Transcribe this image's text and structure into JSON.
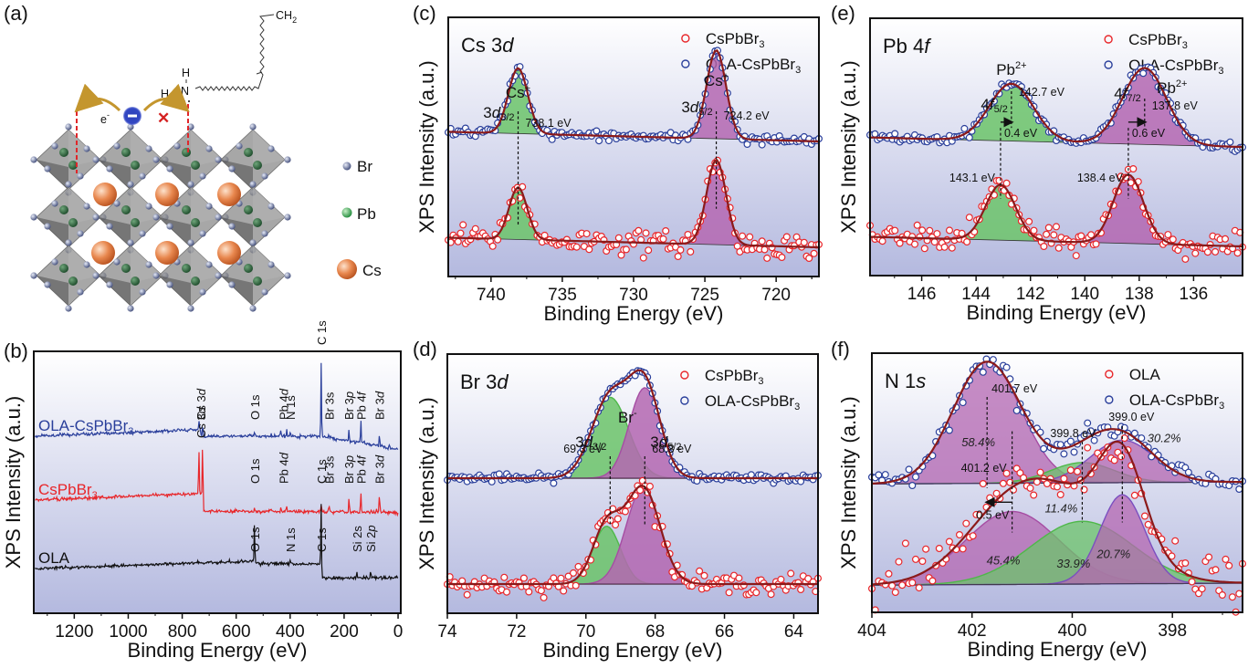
{
  "figure": {
    "panels": [
      "(a)",
      "(b)",
      "(c)",
      "(d)",
      "(e)",
      "(f)"
    ]
  },
  "structure": {
    "panel_label": "(a)",
    "legend": [
      {
        "label": "Br",
        "color": "#6e7aa3"
      },
      {
        "label": "Pb",
        "color": "#2fa84f"
      },
      {
        "label": "Cs",
        "color": "#d9682a"
      }
    ],
    "molecule": {
      "chain_end": "CH",
      "chain_end_sub": "2",
      "amine_h_top": "H",
      "amine_h_left": "H",
      "amine_n": "N"
    },
    "electron_label": "e",
    "electron_sup": "-",
    "blocked_mark": "✕"
  },
  "colors": {
    "CsPbBr3": "#e8262a",
    "OLA-CsPbBr3": "#2a3f9b",
    "OLA": "#111111",
    "fit": "#8b1a1a",
    "green_fill": "#6cc46a",
    "purple_fill": "#b467b1",
    "violet_line": "#7b4fbf",
    "bg_top": "#ffffff",
    "bg_bottom": "#b4b9df"
  },
  "chart_data": [
    {
      "id": "b",
      "panel_label": "(b)",
      "type": "line",
      "title": "",
      "xlabel": "Binding Energy (eV)",
      "ylabel": "XPS Intensity (a.u.)",
      "xlim": [
        1350,
        -10
      ],
      "xticks": [
        1200,
        1000,
        800,
        600,
        400,
        200,
        0
      ],
      "xtick_labels": [
        "1200",
        "1000",
        "800",
        "600",
        "400",
        "200",
        "0"
      ],
      "series": [
        {
          "name": "OLA-CsPbBr3",
          "label": "OLA-CsPbBr",
          "label_sub": "3",
          "color_key": "OLA-CsPbBr3",
          "peaks": [
            {
              "label": "Cs 3d",
              "x": [
                738,
                724
              ]
            },
            {
              "label": "O 1s",
              "x": [
                532
              ]
            },
            {
              "label": "Pb 4d",
              "x": [
                435,
                413
              ]
            },
            {
              "label": "N 1s",
              "x": [
                400
              ]
            },
            {
              "label": "C 1s",
              "x": [
                285
              ]
            },
            {
              "label": "Br 3s",
              "x": [
                256
              ]
            },
            {
              "label": "Br 3p",
              "x": [
                182
              ]
            },
            {
              "label": "Pb 4f",
              "x": [
                138
              ]
            },
            {
              "label": "Br 3d",
              "x": [
                69
              ]
            }
          ]
        },
        {
          "name": "CsPbBr3",
          "label": "CsPbBr",
          "label_sub": "3",
          "color_key": "CsPbBr3",
          "peaks": [
            {
              "label": "Cs 3d",
              "x": [
                738,
                724
              ]
            },
            {
              "label": "O 1s",
              "x": [
                532
              ]
            },
            {
              "label": "Pb 4d",
              "x": [
                435,
                413
              ]
            },
            {
              "label": "C 1s",
              "x": [
                285
              ]
            },
            {
              "label": "Br 3s",
              "x": [
                256
              ]
            },
            {
              "label": "Br 3p",
              "x": [
                182
              ]
            },
            {
              "label": "Pb 4f",
              "x": [
                138
              ]
            },
            {
              "label": "Br 3d",
              "x": [
                69
              ]
            }
          ]
        },
        {
          "name": "OLA",
          "label": "OLA",
          "label_sub": "",
          "color_key": "OLA",
          "peaks": [
            {
              "label": "O 1s",
              "x": [
                532
              ]
            },
            {
              "label": "N 1s",
              "x": [
                400
              ]
            },
            {
              "label": "C 1s",
              "x": [
                285
              ]
            },
            {
              "label": "Si 2s",
              "x": [
                153
              ]
            },
            {
              "label": "Si 2p",
              "x": [
                102
              ]
            }
          ]
        }
      ]
    },
    {
      "id": "c",
      "panel_label": "(c)",
      "type": "scatter",
      "title": "Cs 3d",
      "xlabel": "Binding Energy (eV)",
      "ylabel": "XPS Intensity (a.u.)",
      "xlim": [
        743,
        717
      ],
      "xticks": [
        740,
        735,
        730,
        725,
        720
      ],
      "xtick_labels": [
        "740",
        "735",
        "730",
        "725",
        "720"
      ],
      "legend": [
        {
          "name": "CsPbBr3",
          "label": "CsPbBr",
          "sub": "3",
          "color_key": "CsPbBr3"
        },
        {
          "name": "OLA-CsPbBr3",
          "label": "OLA-CsPbBr",
          "sub": "3",
          "color_key": "OLA-CsPbBr3"
        }
      ],
      "series": [
        {
          "name": "OLA-CsPbBr3",
          "color_key": "OLA-CsPbBr3",
          "offset": 0.55,
          "baseline_slope": 0.05,
          "noise": 0.012,
          "components": [
            {
              "center": 738.1,
              "height": 0.34,
              "fwhm": 1.6,
              "fill": "green_fill"
            },
            {
              "center": 724.2,
              "height": 0.46,
              "fwhm": 1.6,
              "fill": "purple_fill"
            }
          ]
        },
        {
          "name": "CsPbBr3",
          "color_key": "CsPbBr3",
          "offset": 0.0,
          "baseline_slope": 0.05,
          "noise": 0.03,
          "components": [
            {
              "center": 738.1,
              "height": 0.27,
              "fwhm": 1.5,
              "fill": "green_fill"
            },
            {
              "center": 724.2,
              "height": 0.44,
              "fwhm": 1.6,
              "fill": "purple_fill"
            }
          ]
        }
      ],
      "annotations": [
        {
          "text": "Cs",
          "sup": "+",
          "x": 738.1,
          "kind": "ion"
        },
        {
          "text": "3d",
          "sub": "3/2",
          "x": 738.1,
          "kind": "orbital",
          "side": "left"
        },
        {
          "text": "738.1 eV",
          "x": 738.1,
          "kind": "energy",
          "side": "right"
        },
        {
          "text": "Cs",
          "sup": "+",
          "x": 724.2,
          "kind": "ion"
        },
        {
          "text": "3d",
          "sub": "5/2",
          "x": 724.2,
          "kind": "orbital",
          "side": "left"
        },
        {
          "text": "724.2 eV",
          "x": 724.2,
          "kind": "energy",
          "side": "right"
        }
      ]
    },
    {
      "id": "d",
      "panel_label": "(d)",
      "type": "scatter",
      "title": "Br 3d",
      "xlabel": "Binding Energy (eV)",
      "ylabel": "XPS Intensity (a.u.)",
      "xlim": [
        74,
        63.3
      ],
      "xticks": [
        74,
        72,
        70,
        68,
        66,
        64
      ],
      "xtick_labels": [
        "74",
        "72",
        "70",
        "68",
        "66",
        "64"
      ],
      "legend": [
        {
          "name": "CsPbBr3",
          "label": "CsPbBr",
          "sub": "3",
          "color_key": "CsPbBr3"
        },
        {
          "name": "OLA-CsPbBr3",
          "label": "OLA-CsPbBr",
          "sub": "3",
          "color_key": "OLA-CsPbBr3"
        }
      ],
      "series": [
        {
          "name": "OLA-CsPbBr3",
          "color_key": "OLA-CsPbBr3",
          "offset": 0.55,
          "baseline_slope": 0.0,
          "noise": 0.01,
          "components": [
            {
              "center": 69.3,
              "height": 0.42,
              "fwhm": 1.25,
              "fill": "green_fill"
            },
            {
              "center": 68.3,
              "height": 0.47,
              "fwhm": 1.05,
              "fill": "purple_fill"
            }
          ]
        },
        {
          "name": "CsPbBr3",
          "color_key": "CsPbBr3",
          "offset": 0.0,
          "baseline_slope": 0.0,
          "noise": 0.025,
          "components": [
            {
              "center": 69.4,
              "height": 0.3,
              "fwhm": 0.95,
              "fill": "green_fill"
            },
            {
              "center": 68.35,
              "height": 0.5,
              "fwhm": 1.15,
              "fill": "purple_fill"
            }
          ]
        }
      ],
      "annotations": [
        {
          "text": "Br",
          "sup": "-",
          "x": 68.8,
          "kind": "ion"
        },
        {
          "text": "3d",
          "sub": "3/2",
          "x": 69.3,
          "kind": "orbital",
          "side": "left"
        },
        {
          "text": "69.3 eV",
          "x": 69.3,
          "kind": "energy",
          "side": "left"
        },
        {
          "text": "3d",
          "sub": "5/2",
          "x": 68.3,
          "kind": "orbital",
          "side": "right"
        },
        {
          "text": "68.3 eV",
          "x": 68.3,
          "kind": "energy",
          "side": "right"
        }
      ]
    },
    {
      "id": "e",
      "panel_label": "(e)",
      "type": "scatter",
      "title": "Pb 4f",
      "xlabel": "Binding Energy (eV)",
      "ylabel": "XPS Intensity (a.u.)",
      "xlim": [
        147.9,
        134.2
      ],
      "xticks": [
        146,
        144,
        142,
        140,
        138,
        136
      ],
      "xtick_labels": [
        "146",
        "144",
        "142",
        "140",
        "138",
        "136"
      ],
      "legend": [
        {
          "name": "CsPbBr3",
          "label": "CsPbBr",
          "sub": "3",
          "color_key": "CsPbBr3"
        },
        {
          "name": "OLA-CsPbBr3",
          "label": "OLA-CsPbBr",
          "sub": "3",
          "color_key": "OLA-CsPbBr3"
        }
      ],
      "series": [
        {
          "name": "OLA-CsPbBr3",
          "color_key": "OLA-CsPbBr3",
          "offset": 0.52,
          "baseline_slope": 0.05,
          "noise": 0.012,
          "components": [
            {
              "center": 142.7,
              "height": 0.3,
              "fwhm": 1.9,
              "fill": "green_fill"
            },
            {
              "center": 137.8,
              "height": 0.4,
              "fwhm": 1.9,
              "fill": "purple_fill"
            }
          ]
        },
        {
          "name": "CsPbBr3",
          "color_key": "CsPbBr3",
          "offset": 0.0,
          "baseline_slope": 0.05,
          "noise": 0.03,
          "components": [
            {
              "center": 143.1,
              "height": 0.29,
              "fwhm": 1.3,
              "fill": "green_fill"
            },
            {
              "center": 138.4,
              "height": 0.36,
              "fwhm": 1.3,
              "fill": "purple_fill"
            }
          ]
        }
      ],
      "annotations": [
        {
          "text": "Pb",
          "sup": "2+",
          "x": 142.7,
          "kind": "ion"
        },
        {
          "text": "4f",
          "sub": "5/2",
          "x": 142.7,
          "kind": "orbital",
          "side": "left"
        },
        {
          "text": "142.7 eV",
          "x": 142.7,
          "kind": "energy",
          "side": "right"
        },
        {
          "text": "Pb",
          "sup": "2+",
          "x": 137.8,
          "kind": "ion",
          "side": "right"
        },
        {
          "text": "4f",
          "sub": "7/2",
          "x": 137.8,
          "kind": "orbital",
          "side": "left"
        },
        {
          "text": "137.8 eV",
          "x": 137.8,
          "kind": "energy",
          "side": "right"
        },
        {
          "text": "143.1 eV",
          "x": 143.1,
          "kind": "energy-low",
          "side": "left"
        },
        {
          "text": "138.4 eV",
          "x": 138.4,
          "kind": "energy-low",
          "side": "left"
        }
      ],
      "shifts": [
        {
          "text": "0.4 eV",
          "from": 143.1,
          "to": 142.7
        },
        {
          "text": "0.6 eV",
          "from": 138.4,
          "to": 137.8
        }
      ]
    },
    {
      "id": "f",
      "panel_label": "(f)",
      "type": "scatter",
      "title": "N 1s",
      "xlabel": "Binding Energy (eV)",
      "ylabel": "XPS Intensity (a.u.)",
      "xlim": [
        404,
        396.6
      ],
      "xticks": [
        404,
        402,
        400,
        398
      ],
      "xtick_labels": [
        "404",
        "402",
        "400",
        "398"
      ],
      "legend": [
        {
          "name": "OLA",
          "label": "OLA",
          "sub": "",
          "color_key": "CsPbBr3"
        },
        {
          "name": "OLA-CsPbBr3",
          "label": "OLA-CsPbBr",
          "sub": "3",
          "color_key": "OLA-CsPbBr3"
        }
      ],
      "series": [
        {
          "name": "OLA-CsPbBr3",
          "color_key": "OLA-CsPbBr3",
          "offset": 0.5,
          "baseline_slope": -0.01,
          "noise": 0.025,
          "components": [
            {
              "center": 401.7,
              "height": 0.6,
              "fwhm": 1.6,
              "fill": "purple_fill",
              "pct": "58.4%"
            },
            {
              "center": 399.8,
              "height": 0.1,
              "fwhm": 1.5,
              "fill": "green_fill",
              "pct": "11.4%"
            },
            {
              "center": 399.0,
              "height": 0.21,
              "fwhm": 1.5,
              "fill": "purple_fill",
              "edge": "violet_line",
              "pct": "30.2%"
            }
          ]
        },
        {
          "name": "OLA",
          "color_key": "CsPbBr3",
          "offset": 0.0,
          "baseline_slope": -0.01,
          "noise": 0.06,
          "components": [
            {
              "center": 401.2,
              "height": 0.36,
              "fwhm": 2.2,
              "fill": "purple_fill",
              "pct": "45.4%"
            },
            {
              "center": 399.8,
              "height": 0.31,
              "fwhm": 2.4,
              "fill": "green_fill",
              "pct": "33.9%"
            },
            {
              "center": 399.0,
              "height": 0.44,
              "fwhm": 1.05,
              "fill": "purple_fill",
              "edge": "violet_line",
              "pct": "20.7%"
            }
          ]
        }
      ],
      "annotations": [
        {
          "text": "401.7 eV",
          "x": 401.7,
          "kind": "energy"
        },
        {
          "text": "399.8 eV",
          "x": 399.8,
          "kind": "energy"
        },
        {
          "text": "399.0 eV",
          "x": 399.0,
          "kind": "energy"
        },
        {
          "text": "401.2 eV",
          "x": 401.2,
          "kind": "energy-low"
        }
      ],
      "shifts": [
        {
          "text": "0.5 eV",
          "from": 401.2,
          "to": 401.7
        }
      ]
    }
  ]
}
